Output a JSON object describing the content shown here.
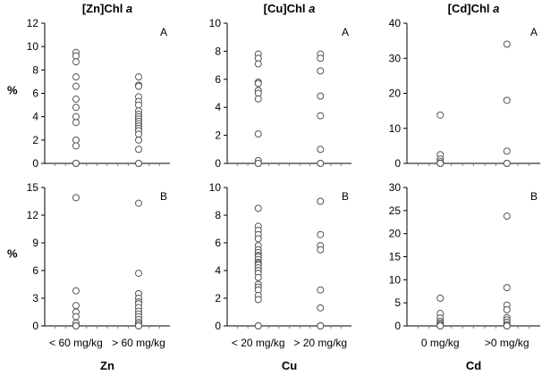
{
  "chart_data": [
    {
      "type": "scatter",
      "col": 0,
      "row": 0,
      "title": "[Zn]Chl ",
      "title_italic": "a",
      "ylabel": "%",
      "panel_label": "A",
      "ylim": [
        0,
        12
      ],
      "yticks": [
        0,
        2,
        4,
        6,
        8,
        10,
        12
      ],
      "categories": [
        "< 60 mg/kg",
        "> 60 mg/kg"
      ],
      "values": [
        [
          9.5,
          9.2,
          8.7,
          7.4,
          6.6,
          5.5,
          4.8,
          4.0,
          3.5,
          2.0,
          1.5,
          0,
          0,
          0
        ],
        [
          7.4,
          6.7,
          6.6,
          5.7,
          5.3,
          5.0,
          4.5,
          4.2,
          4.0,
          3.8,
          3.6,
          3.4,
          3.2,
          3.0,
          2.8,
          2.5,
          2.0,
          1.2,
          0,
          0
        ]
      ]
    },
    {
      "type": "scatter",
      "col": 1,
      "row": 0,
      "title": "[Cu]Chl ",
      "title_italic": "a",
      "ylabel": "",
      "panel_label": "A",
      "ylim": [
        0,
        10
      ],
      "yticks": [
        0,
        2,
        4,
        6,
        8,
        10
      ],
      "categories": [
        "< 20 mg/kg",
        "> 20 mg/kg"
      ],
      "values": [
        [
          7.8,
          7.5,
          7.1,
          5.8,
          5.7,
          5.2,
          5.0,
          4.6,
          2.1,
          0.2,
          0,
          0
        ],
        [
          7.8,
          7.5,
          6.6,
          4.8,
          3.4,
          1.0,
          0,
          0
        ]
      ]
    },
    {
      "type": "scatter",
      "col": 2,
      "row": 0,
      "title": "[Cd]Chl ",
      "title_italic": "a",
      "ylabel": "",
      "panel_label": "A",
      "ylim": [
        0,
        40
      ],
      "yticks": [
        0,
        10,
        20,
        30,
        40
      ],
      "categories": [
        "0 mg/kg",
        ">0 mg/kg"
      ],
      "values": [
        [
          13.8,
          2.5,
          1.2,
          0.5,
          0,
          0,
          0
        ],
        [
          34.0,
          18.0,
          3.5,
          0,
          0,
          0
        ]
      ]
    },
    {
      "type": "scatter",
      "col": 0,
      "row": 1,
      "title": "",
      "title_italic": "",
      "ylabel": "%",
      "panel_label": "B",
      "ylim": [
        0,
        15
      ],
      "yticks": [
        0,
        3,
        6,
        9,
        12,
        15
      ],
      "categories": [
        "< 60 mg/kg",
        "> 60 mg/kg"
      ],
      "values": [
        [
          13.9,
          3.8,
          2.2,
          1.5,
          1.0,
          0.3,
          0,
          0
        ],
        [
          13.3,
          5.7,
          3.5,
          3.0,
          2.6,
          2.4,
          2.0,
          1.6,
          1.3,
          1.0,
          0.7,
          0.4,
          0.2,
          0,
          0
        ]
      ]
    },
    {
      "type": "scatter",
      "col": 1,
      "row": 1,
      "title": "",
      "title_italic": "",
      "ylabel": "",
      "panel_label": "B",
      "ylim": [
        0,
        10
      ],
      "yticks": [
        0,
        2,
        4,
        6,
        8,
        10
      ],
      "categories": [
        "< 20 mg/kg",
        "> 20 mg/kg"
      ],
      "values": [
        [
          8.5,
          7.2,
          6.9,
          6.6,
          6.3,
          5.8,
          5.5,
          5.3,
          5.1,
          5.0,
          4.8,
          4.6,
          4.5,
          4.4,
          4.2,
          4.0,
          3.8,
          3.5,
          3.0,
          2.8,
          2.6,
          2.2,
          1.9,
          0,
          0
        ],
        [
          9.0,
          6.6,
          5.8,
          5.5,
          2.6,
          1.3,
          0,
          0
        ]
      ]
    },
    {
      "type": "scatter",
      "col": 2,
      "row": 1,
      "title": "",
      "title_italic": "",
      "ylabel": "",
      "panel_label": "B",
      "ylim": [
        0,
        30
      ],
      "yticks": [
        0,
        5,
        10,
        15,
        20,
        25,
        30
      ],
      "categories": [
        "0 mg/kg",
        ">0 mg/kg"
      ],
      "values": [
        [
          6.0,
          2.7,
          1.7,
          1.0,
          0.6,
          0.3,
          0,
          0
        ],
        [
          23.8,
          8.3,
          4.5,
          3.5,
          1.8,
          1.3,
          0.8,
          0.3,
          0,
          0
        ]
      ]
    }
  ],
  "xlabels": [
    "Zn",
    "Cu",
    "Cd"
  ],
  "colors": {
    "axis": "#000000",
    "tick": "#7f7f7f",
    "marker_stroke": "#555555",
    "marker_fill": "#ffffff"
  }
}
